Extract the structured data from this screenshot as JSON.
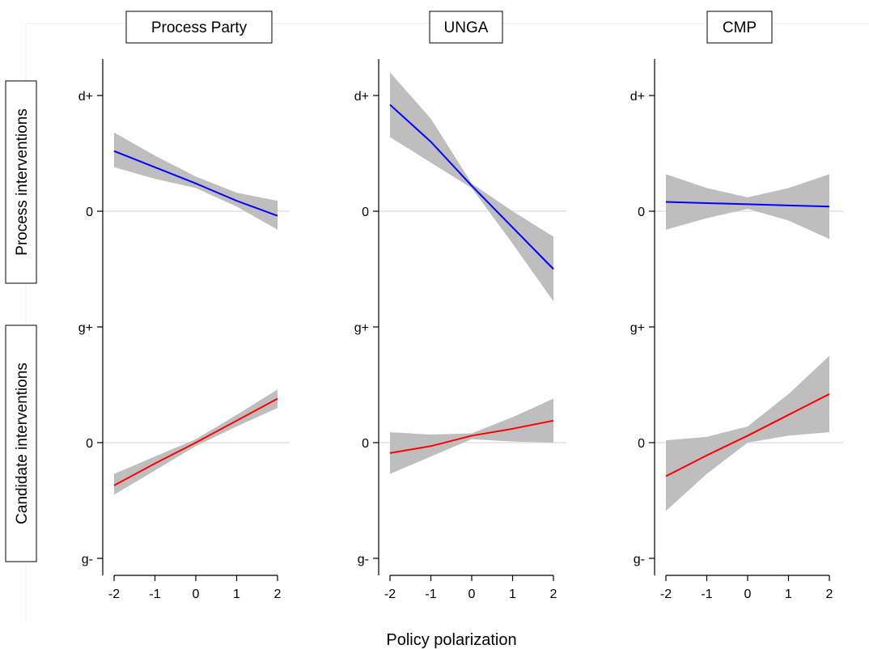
{
  "chart_data": {
    "type": "line",
    "x_axis_label": "Policy polarization",
    "x_ticks": [
      -2,
      -1,
      0,
      1,
      2
    ],
    "xlim": [
      -2,
      2
    ],
    "grid": "horizontal zero line only",
    "columns": [
      {
        "title": "Process Party"
      },
      {
        "title": "UNGA"
      },
      {
        "title": "CMP"
      }
    ],
    "rows": [
      {
        "label": "Process interventions",
        "tick_labels": [
          "d+",
          "0"
        ],
        "tick_values": [
          1,
          0
        ],
        "ylim": [
          -1,
          1
        ],
        "line_color": "#0000ff"
      },
      {
        "label": "Candidate interventions",
        "tick_labels": [
          "g+",
          "0",
          "g-"
        ],
        "tick_values": [
          1,
          0,
          -1
        ],
        "ylim": [
          -1,
          1
        ],
        "line_color": "#ff0000"
      }
    ],
    "ci_color": "#bebebe",
    "panels": [
      {
        "row": 0,
        "col": 0,
        "x": [
          -2,
          -1,
          0,
          1,
          2
        ],
        "y": [
          0.52,
          0.38,
          0.24,
          0.09,
          -0.04
        ],
        "lower": [
          0.38,
          0.28,
          0.2,
          0.04,
          -0.16
        ],
        "upper": [
          0.68,
          0.48,
          0.3,
          0.16,
          0.09
        ]
      },
      {
        "row": 0,
        "col": 1,
        "x": [
          -2,
          -1,
          0,
          1,
          2
        ],
        "y": [
          0.92,
          0.6,
          0.22,
          -0.14,
          -0.5
        ],
        "lower": [
          0.64,
          0.42,
          0.2,
          -0.28,
          -0.78
        ],
        "upper": [
          1.2,
          0.8,
          0.24,
          0.0,
          -0.22
        ]
      },
      {
        "row": 0,
        "col": 2,
        "x": [
          -2,
          -1,
          0,
          1,
          2
        ],
        "y": [
          0.08,
          0.07,
          0.06,
          0.05,
          0.04
        ],
        "lower": [
          -0.16,
          -0.06,
          0.02,
          -0.08,
          -0.24
        ],
        "upper": [
          0.32,
          0.2,
          0.12,
          0.2,
          0.32
        ]
      },
      {
        "row": 1,
        "col": 0,
        "x": [
          -2,
          -1,
          0,
          1,
          2
        ],
        "y": [
          -0.37,
          -0.18,
          0.0,
          0.19,
          0.38
        ],
        "lower": [
          -0.45,
          -0.24,
          -0.03,
          0.14,
          0.3
        ],
        "upper": [
          -0.27,
          -0.12,
          0.03,
          0.24,
          0.46
        ]
      },
      {
        "row": 1,
        "col": 1,
        "x": [
          -2,
          -1,
          0,
          1,
          2
        ],
        "y": [
          -0.09,
          -0.03,
          0.06,
          0.12,
          0.19
        ],
        "lower": [
          -0.27,
          -0.12,
          0.03,
          0.01,
          0.0
        ],
        "upper": [
          0.09,
          0.07,
          0.08,
          0.22,
          0.38
        ]
      },
      {
        "row": 1,
        "col": 2,
        "x": [
          -2,
          -1,
          0,
          1,
          2
        ],
        "y": [
          -0.29,
          -0.11,
          0.06,
          0.24,
          0.42
        ],
        "lower": [
          -0.59,
          -0.27,
          0.0,
          0.06,
          0.09
        ],
        "upper": [
          0.02,
          0.05,
          0.14,
          0.42,
          0.75
        ]
      }
    ]
  }
}
